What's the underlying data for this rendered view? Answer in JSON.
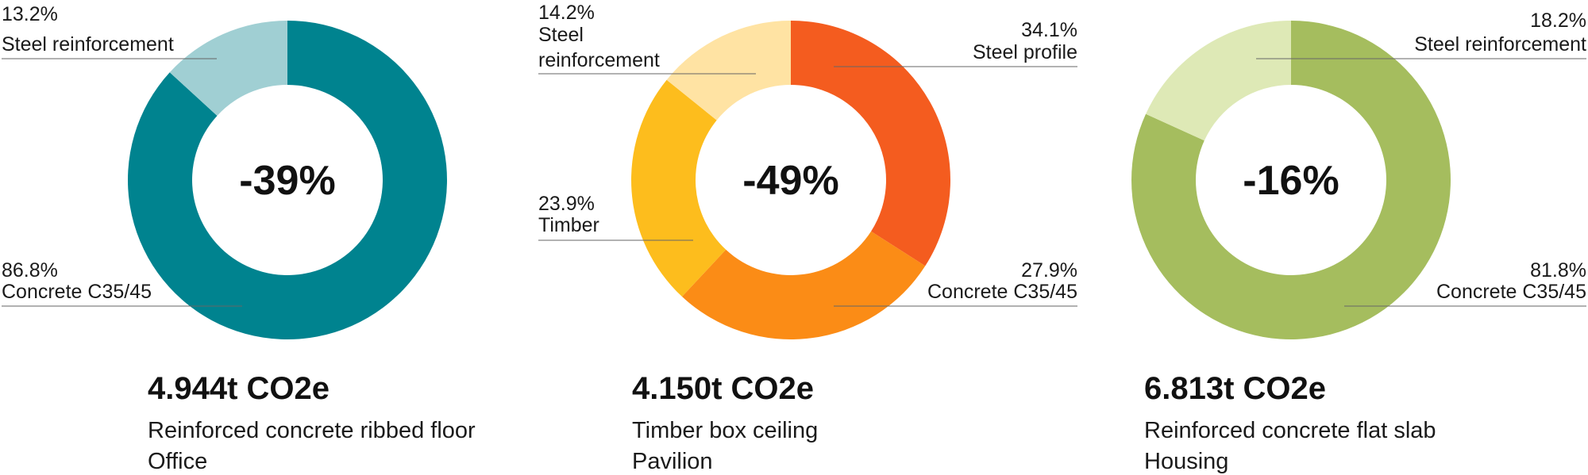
{
  "chart_data": [
    {
      "type": "pie",
      "center_label": "-39%",
      "total": "4.944t CO2e",
      "description": [
        "Reinforced concrete ribbed floor",
        "Office"
      ],
      "slices": [
        {
          "name": "Concrete C35/45",
          "value": 86.8,
          "label": "86.8%",
          "color": "#00838f"
        },
        {
          "name": "Steel reinforcement",
          "value": 13.2,
          "label": "13.2%",
          "color": "#a0cfd3"
        }
      ]
    },
    {
      "type": "pie",
      "center_label": "-49%",
      "total": "4.150t CO2e",
      "description": [
        "Timber box ceiling",
        "Pavilion"
      ],
      "slices": [
        {
          "name": "Steel profile",
          "value": 34.1,
          "label": "34.1%",
          "color": "#f45c1f"
        },
        {
          "name": "Concrete C35/45",
          "value": 27.9,
          "label": "27.9%",
          "color": "#fb8c16"
        },
        {
          "name": "Timber",
          "value": 23.9,
          "label": "23.9%",
          "color": "#fdbd1d"
        },
        {
          "name": "Steel reinforcement",
          "value": 14.2,
          "label": "14.2%",
          "color": "#ffe3a3"
        }
      ]
    },
    {
      "type": "pie",
      "center_label": "-16%",
      "total": "6.813t CO2e",
      "description": [
        "Reinforced concrete flat slab",
        "Housing"
      ],
      "slices": [
        {
          "name": "Concrete C35/45",
          "value": 81.8,
          "label": "81.8%",
          "color": "#a5bd5e"
        },
        {
          "name": "Steel reinforcement",
          "value": 18.2,
          "label": "18.2%",
          "color": "#dee9b6"
        }
      ]
    }
  ]
}
